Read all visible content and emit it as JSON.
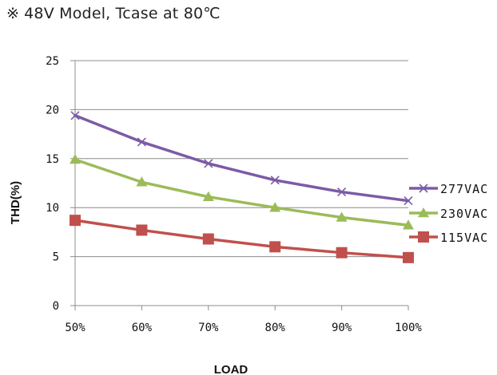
{
  "header": {
    "mark": "※",
    "text": "48V Model, Tcase at 80℃"
  },
  "chart_data": {
    "type": "line",
    "title": "",
    "xlabel": "LOAD",
    "ylabel": "THD(%)",
    "categories": [
      "50%",
      "60%",
      "70%",
      "80%",
      "90%",
      "100%"
    ],
    "ylim": [
      0,
      25
    ],
    "yticks": [
      "0",
      "5",
      "10",
      "15",
      "20",
      "25"
    ],
    "grid": "horizontal",
    "legend_position": "right",
    "series": [
      {
        "name": "277VAC",
        "color": "#7b5ba6",
        "marker": "x",
        "values": [
          19.4,
          16.7,
          14.5,
          12.8,
          11.6,
          10.7
        ]
      },
      {
        "name": "230VAC",
        "color": "#9bbb59",
        "marker": "triangle",
        "values": [
          14.9,
          12.6,
          11.1,
          10.0,
          9.0,
          8.2
        ]
      },
      {
        "name": "115VAC",
        "color": "#c0504d",
        "marker": "square",
        "values": [
          8.7,
          7.7,
          6.8,
          6.0,
          5.4,
          4.9
        ]
      }
    ]
  }
}
